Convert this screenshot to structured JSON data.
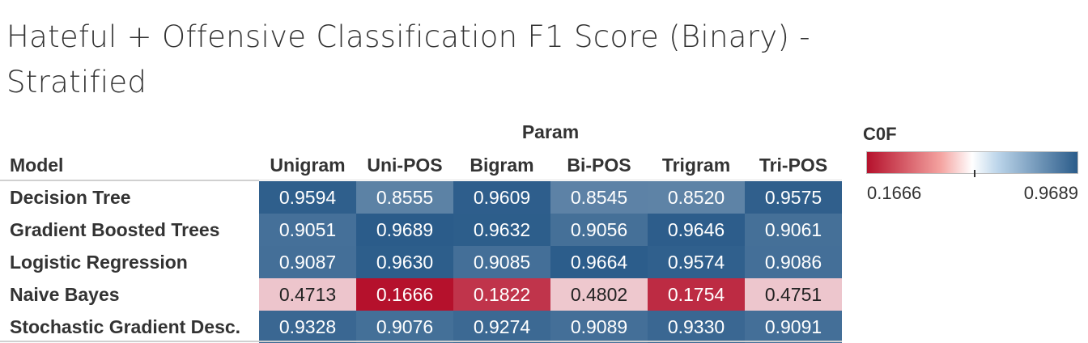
{
  "title": "Hateful + Offensive Classification F1 Score (Binary) - Stratified",
  "row_header": "Model",
  "column_group_header": "Param",
  "legend": {
    "title": "C0F",
    "min_label": "0.1666",
    "max_label": "0.9689",
    "colors": {
      "low": "#b5112c",
      "mid": "#ffffff",
      "high": "#2b5c8a"
    }
  },
  "chart_data": {
    "type": "heatmap",
    "title": "Hateful + Offensive Classification F1 Score (Binary) - Stratified",
    "xlabel": "Param",
    "ylabel": "Model",
    "columns": [
      "Unigram",
      "Uni-POS",
      "Bigram",
      "Bi-POS",
      "Trigram",
      "Tri-POS"
    ],
    "rows": [
      "Decision Tree",
      "Gradient Boosted Trees",
      "Logistic Regression",
      "Naive Bayes",
      "Stochastic Gradient Desc."
    ],
    "values": [
      [
        "0.9594",
        "0.8555",
        "0.9609",
        "0.8545",
        "0.8520",
        "0.9575"
      ],
      [
        "0.9051",
        "0.9689",
        "0.9632",
        "0.9056",
        "0.9646",
        "0.9061"
      ],
      [
        "0.9087",
        "0.9630",
        "0.9085",
        "0.9664",
        "0.9574",
        "0.9086"
      ],
      [
        "0.4713",
        "0.1666",
        "0.1822",
        "0.4802",
        "0.1754",
        "0.4751"
      ],
      [
        "0.9328",
        "0.9076",
        "0.9274",
        "0.9089",
        "0.9330",
        "0.9091"
      ]
    ],
    "color_range": [
      0.1666,
      0.9689
    ],
    "color_center": 0.6725
  }
}
